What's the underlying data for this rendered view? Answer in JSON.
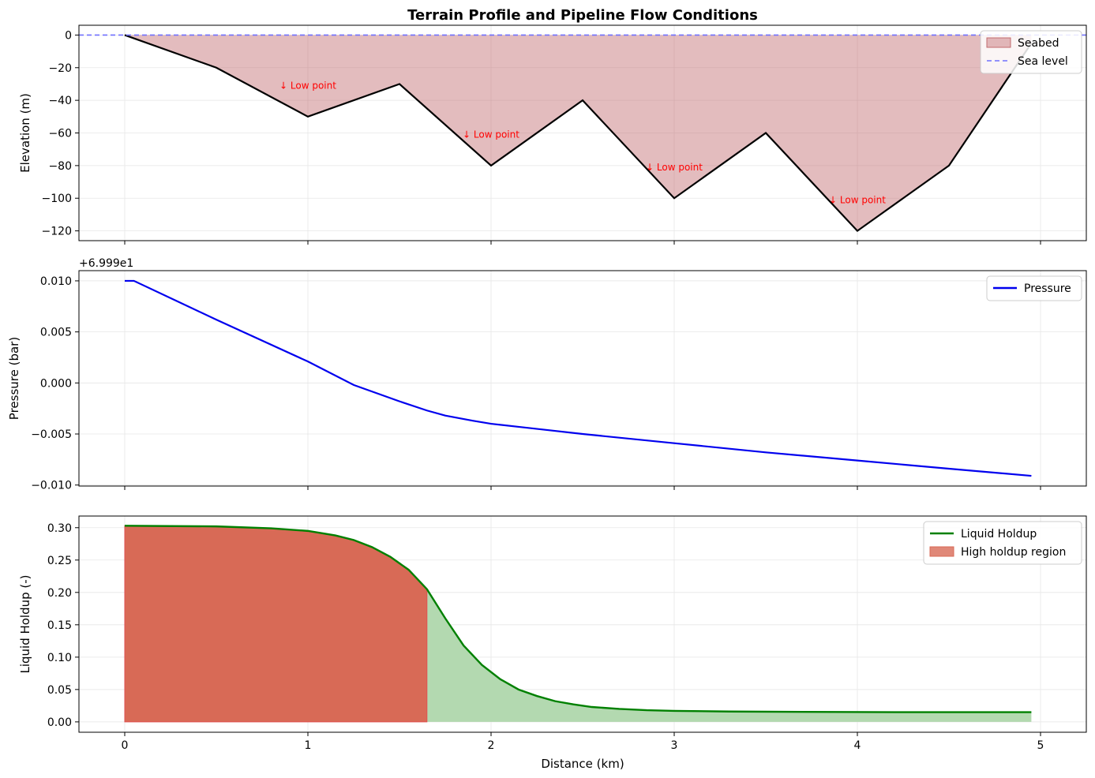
{
  "figure": {
    "title": "Terrain Profile and Pipeline Flow Conditions",
    "shared_xlabel": "Distance (km)"
  },
  "chart_data": [
    {
      "type": "area",
      "panel": "terrain",
      "title": "Terrain Profile and Pipeline Flow Conditions",
      "ylabel": "Elevation (m)",
      "xlim": [
        -0.25,
        5.25
      ],
      "ylim": [
        -126,
        6
      ],
      "yticks": [
        0,
        -20,
        -40,
        -60,
        -80,
        -100,
        -120
      ],
      "ytick_labels": [
        "0",
        "−20",
        "−40",
        "−60",
        "−80",
        "−100",
        "−120"
      ],
      "xticks": [
        0,
        1,
        2,
        3,
        4,
        5
      ],
      "grid": true,
      "legend_position": "top-right",
      "series": [
        {
          "name": "Seabed",
          "kind": "fill_line",
          "color": "#c26b6e",
          "x": [
            0,
            0.5,
            1.0,
            1.5,
            2.0,
            2.5,
            3.0,
            3.5,
            4.0,
            4.5,
            4.95
          ],
          "y": [
            0,
            -20,
            -50,
            -30,
            -80,
            -40,
            -100,
            -60,
            -120,
            -80,
            -5
          ]
        },
        {
          "name": "Sea level",
          "kind": "dashed_line",
          "color": "#7070ff",
          "y": 0
        }
      ],
      "annotations": [
        {
          "text": "↓ Low point",
          "x": 1.0,
          "y": -33,
          "color": "#ff0000"
        },
        {
          "text": "↓ Low point",
          "x": 2.0,
          "y": -63,
          "color": "#ff0000"
        },
        {
          "text": "↓ Low point",
          "x": 3.0,
          "y": -83,
          "color": "#ff0000"
        },
        {
          "text": "↓ Low point",
          "x": 4.0,
          "y": -103,
          "color": "#ff0000"
        }
      ]
    },
    {
      "type": "line",
      "panel": "pressure",
      "ylabel": "Pressure (bar)",
      "offset_label": "+6.999e1",
      "xlim": [
        -0.25,
        5.25
      ],
      "ylim": [
        -0.0101,
        0.011
      ],
      "yticks": [
        0.01,
        0.005,
        0.0,
        -0.005,
        -0.01
      ],
      "ytick_labels": [
        "0.010",
        "0.005",
        "0.000",
        "−0.005",
        "−0.010"
      ],
      "xticks": [
        0,
        1,
        2,
        3,
        4,
        5
      ],
      "grid": true,
      "legend_position": "top-right",
      "series": [
        {
          "name": "Pressure",
          "color": "#0000ee",
          "x": [
            0,
            0.05,
            0.5,
            1.0,
            1.25,
            1.5,
            1.65,
            1.75,
            1.9,
            2.0,
            2.15,
            2.3,
            2.5,
            3.0,
            3.5,
            4.0,
            4.5,
            4.95
          ],
          "y": [
            0.01,
            0.01,
            0.0062,
            0.0021,
            -0.0002,
            -0.0018,
            -0.0027,
            -0.0032,
            -0.0037,
            -0.004,
            -0.0043,
            -0.0046,
            -0.005,
            -0.0059,
            -0.0068,
            -0.0076,
            -0.0084,
            -0.0091
          ]
        }
      ]
    },
    {
      "type": "area",
      "panel": "holdup",
      "ylabel": "Liquid Holdup (-)",
      "xlabel": "Distance (km)",
      "xlim": [
        -0.25,
        5.25
      ],
      "ylim": [
        -0.016,
        0.318
      ],
      "yticks": [
        0.0,
        0.05,
        0.1,
        0.15,
        0.2,
        0.25,
        0.3
      ],
      "ytick_labels": [
        "0.00",
        "0.05",
        "0.10",
        "0.15",
        "0.20",
        "0.25",
        "0.30"
      ],
      "xticks": [
        0,
        1,
        2,
        3,
        4,
        5
      ],
      "xtick_labels": [
        "0",
        "1",
        "2",
        "3",
        "4",
        "5"
      ],
      "grid": true,
      "legend_position": "top-right",
      "series": [
        {
          "name": "Liquid Holdup",
          "kind": "line_with_fill",
          "color": "#008000",
          "fill_color": "#b3d9b0",
          "x": [
            0,
            0.5,
            0.8,
            1.0,
            1.15,
            1.25,
            1.35,
            1.45,
            1.55,
            1.65,
            1.75,
            1.85,
            1.95,
            2.05,
            2.15,
            2.25,
            2.35,
            2.45,
            2.55,
            2.7,
            2.85,
            3.0,
            3.3,
            3.7,
            4.2,
            4.95
          ],
          "y": [
            0.303,
            0.302,
            0.299,
            0.295,
            0.288,
            0.281,
            0.27,
            0.255,
            0.235,
            0.205,
            0.16,
            0.118,
            0.088,
            0.066,
            0.05,
            0.04,
            0.032,
            0.027,
            0.023,
            0.02,
            0.018,
            0.017,
            0.016,
            0.0155,
            0.015,
            0.015
          ]
        },
        {
          "name": "High holdup region",
          "kind": "region_fill",
          "color": "#d86a56",
          "x_end": 1.65
        }
      ]
    }
  ]
}
